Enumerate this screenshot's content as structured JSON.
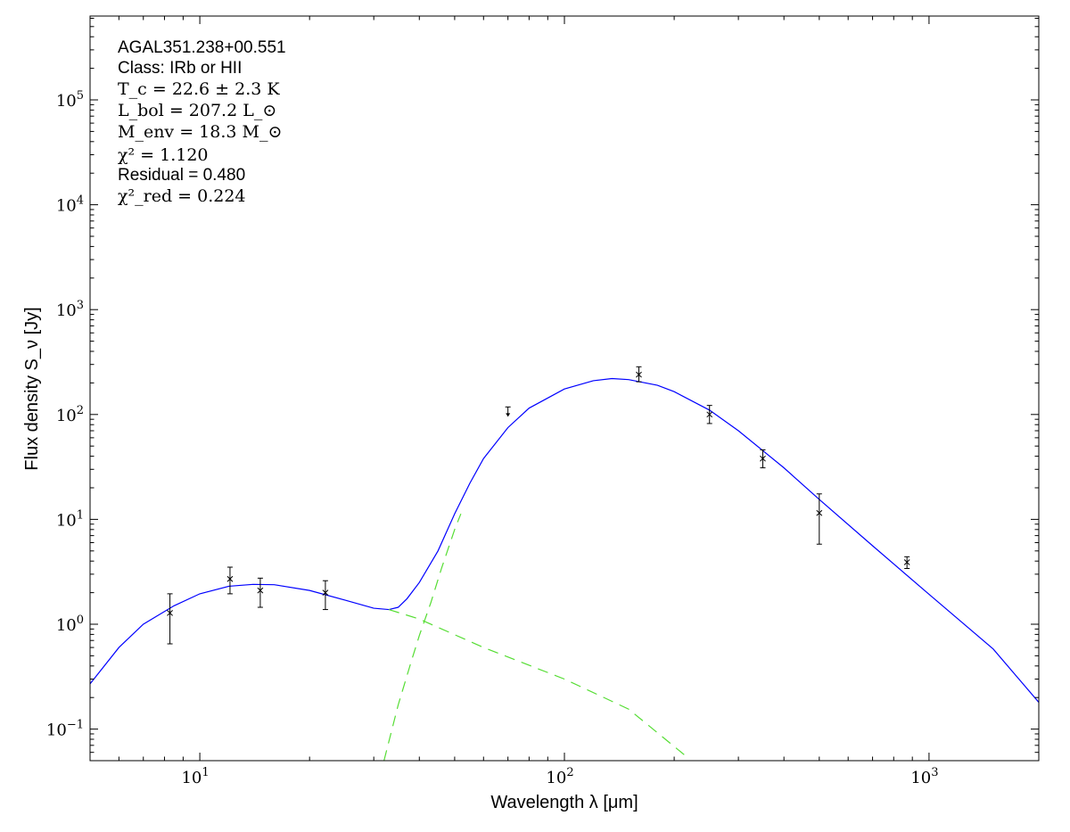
{
  "chart_data": {
    "type": "scatter",
    "xscale": "log",
    "yscale": "log",
    "xlim": [
      5,
      2000
    ],
    "ylim": [
      0.05,
      630000
    ],
    "xlabel": "Wavelength λ [μm]",
    "ylabel": "Flux density S_ν [Jy]",
    "grid": false,
    "x_ticks": [
      {
        "value": 10,
        "base": "10",
        "exp": "1"
      },
      {
        "value": 100,
        "base": "10",
        "exp": "2"
      },
      {
        "value": 1000,
        "base": "10",
        "exp": "3"
      }
    ],
    "y_ticks": [
      {
        "value": 0.1,
        "base": "10",
        "exp": "−1"
      },
      {
        "value": 1,
        "base": "10",
        "exp": "0"
      },
      {
        "value": 10,
        "base": "10",
        "exp": "1"
      },
      {
        "value": 100,
        "base": "10",
        "exp": "2"
      },
      {
        "value": 1000,
        "base": "10",
        "exp": "3"
      },
      {
        "value": 10000,
        "base": "10",
        "exp": "4"
      },
      {
        "value": 100000,
        "base": "10",
        "exp": "5"
      }
    ],
    "annotations": {
      "source": "AGAL351.238+00.551",
      "class_line": "Class: IRb or HII",
      "tc_line": "T_c = 22.6 ± 2.3 K",
      "lbol_line": "L_bol = 207.2 L_⊙",
      "menv_line": "M_env = 18.3 M_⊙",
      "chi2_line": "χ² = 1.120",
      "residual_line": "Residual = 0.480",
      "chi2red_line": "χ²_red = 0.224"
    },
    "measurements": [
      {
        "x": 8.28,
        "y": 1.28,
        "ylo": 0.65,
        "yhi": 1.95
      },
      {
        "x": 12.1,
        "y": 2.7,
        "ylo": 1.95,
        "yhi": 3.5
      },
      {
        "x": 14.65,
        "y": 2.1,
        "ylo": 1.45,
        "yhi": 2.75
      },
      {
        "x": 22.1,
        "y": 2.0,
        "ylo": 1.38,
        "yhi": 2.6
      },
      {
        "x": 160,
        "y": 240,
        "ylo": 205,
        "yhi": 285
      },
      {
        "x": 250,
        "y": 100,
        "ylo": 82,
        "yhi": 122
      },
      {
        "x": 350,
        "y": 38,
        "ylo": 31,
        "yhi": 46
      },
      {
        "x": 500,
        "y": 11.5,
        "ylo": 5.8,
        "yhi": 17.5
      },
      {
        "x": 870,
        "y": 3.9,
        "ylo": 3.4,
        "yhi": 4.4
      }
    ],
    "upper_limits": [
      {
        "x": 70,
        "y": 118,
        "arrow_to": 97
      }
    ],
    "series": [
      {
        "role": "total fit",
        "color": "#0000ff",
        "dash": "solid",
        "points": [
          [
            5,
            0.27
          ],
          [
            6,
            0.6
          ],
          [
            7,
            1.0
          ],
          [
            8.5,
            1.5
          ],
          [
            10,
            1.95
          ],
          [
            12,
            2.3
          ],
          [
            14,
            2.4
          ],
          [
            16,
            2.38
          ],
          [
            20,
            2.1
          ],
          [
            25,
            1.7
          ],
          [
            30,
            1.42
          ],
          [
            33,
            1.38
          ],
          [
            35,
            1.45
          ],
          [
            37,
            1.75
          ],
          [
            40,
            2.5
          ],
          [
            45,
            5
          ],
          [
            50,
            11.3
          ],
          [
            55,
            22
          ],
          [
            60,
            38
          ],
          [
            70,
            75
          ],
          [
            80,
            115
          ],
          [
            100,
            175
          ],
          [
            120,
            210
          ],
          [
            135,
            220
          ],
          [
            150,
            215
          ],
          [
            180,
            190
          ],
          [
            200,
            165
          ],
          [
            250,
            110
          ],
          [
            300,
            70
          ],
          [
            400,
            31
          ],
          [
            500,
            15.5
          ],
          [
            700,
            5.6
          ],
          [
            1000,
            1.93
          ],
          [
            1500,
            0.58
          ],
          [
            2000,
            0.18
          ]
        ]
      },
      {
        "role": "warm component",
        "color": "#55dd33",
        "dash": "dashed",
        "points": [
          [
            33,
            1.38
          ],
          [
            40,
            1.12
          ],
          [
            60,
            0.6
          ],
          [
            100,
            0.3
          ],
          [
            150,
            0.155
          ],
          [
            220,
            0.052
          ]
        ]
      },
      {
        "role": "cold component",
        "color": "#55dd33",
        "dash": "dashed",
        "points": [
          [
            32,
            0.05
          ],
          [
            35,
            0.17
          ],
          [
            38,
            0.44
          ],
          [
            40,
            0.78
          ],
          [
            43,
            1.6
          ],
          [
            46,
            3.4
          ],
          [
            50,
            8
          ],
          [
            52,
            11.3
          ]
        ]
      }
    ]
  }
}
